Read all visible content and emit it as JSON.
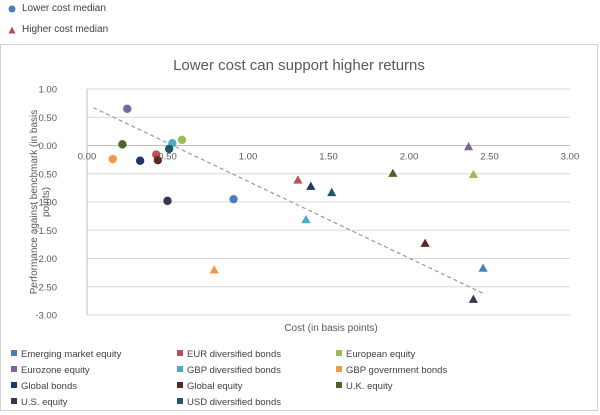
{
  "top_legend": {
    "lower": {
      "label": "Lower cost median",
      "marker": "circle",
      "color": "#4a7ebb"
    },
    "higher": {
      "label": "Higher cost median",
      "marker": "triangle",
      "color": "#be4b48"
    }
  },
  "chart_data": {
    "type": "scatter",
    "title": "Lower cost can support higher returns",
    "xlabel": "Cost (in basis points)",
    "ylabel": "Performance against benchmark (in basis points)",
    "xlim": [
      0,
      3
    ],
    "ylim": [
      -3,
      1
    ],
    "x_ticks": [
      "0.00",
      "0.50",
      "1.00",
      "1.50",
      "2.00",
      "2.50",
      "3.00"
    ],
    "y_ticks": [
      "1.00",
      "0.50",
      "0.00",
      "-0.50",
      "-1.00",
      "-1.50",
      "-2.00",
      "-2.50",
      "-3.00"
    ],
    "grid": "horizontal",
    "trendline": {
      "style": "dashed",
      "color": "#999999",
      "x": [
        0.04,
        2.47
      ],
      "y": [
        0.67,
        -2.63
      ]
    },
    "legend_position": "bottom",
    "series": [
      {
        "name": "Emerging market equity",
        "color": "#4a7ebb",
        "lower": [
          0.91,
          -0.95
        ],
        "higher": [
          2.46,
          -2.17
        ]
      },
      {
        "name": "EUR diversified bonds",
        "color": "#c0504d",
        "lower": [
          0.43,
          -0.16
        ],
        "higher": [
          1.31,
          -0.61
        ]
      },
      {
        "name": "European equity",
        "color": "#9bbb59",
        "lower": [
          0.59,
          0.1
        ],
        "higher": [
          2.4,
          -0.51
        ]
      },
      {
        "name": "Eurozone equity",
        "color": "#8064a2",
        "lower": [
          0.25,
          0.65
        ],
        "higher": [
          2.37,
          -0.02
        ]
      },
      {
        "name": "GBP diversified bonds",
        "color": "#4bacc6",
        "lower": [
          0.53,
          0.04
        ],
        "higher": [
          1.36,
          -1.31
        ]
      },
      {
        "name": "GBP government bonds",
        "color": "#f79646",
        "lower": [
          0.16,
          -0.24
        ],
        "higher": [
          0.79,
          -2.2
        ]
      },
      {
        "name": "Global bonds",
        "color": "#1f3864",
        "lower": [
          0.33,
          -0.27
        ],
        "higher": [
          1.39,
          -0.72
        ]
      },
      {
        "name": "Global equity",
        "color": "#632523",
        "lower": [
          0.44,
          -0.26
        ],
        "higher": [
          2.1,
          -1.73
        ]
      },
      {
        "name": "U.K. equity",
        "color": "#4f6228",
        "lower": [
          0.22,
          0.02
        ],
        "higher": [
          1.9,
          -0.49
        ]
      },
      {
        "name": "U.S. equity",
        "color": "#3f3151",
        "lower": [
          0.5,
          -0.98
        ],
        "higher": [
          2.4,
          -2.72
        ]
      },
      {
        "name": "USD diversified bonds",
        "color": "#205867",
        "lower": [
          0.51,
          -0.06
        ],
        "higher": [
          1.52,
          -0.83
        ]
      }
    ]
  }
}
